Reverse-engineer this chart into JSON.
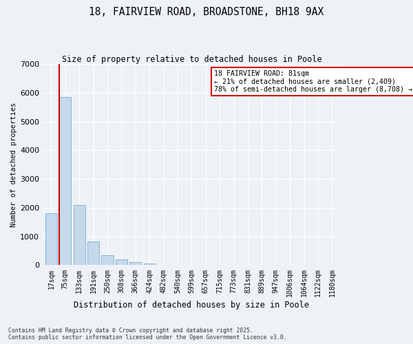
{
  "title_line1": "18, FAIRVIEW ROAD, BROADSTONE, BH18 9AX",
  "title_line2": "Size of property relative to detached houses in Poole",
  "xlabel": "Distribution of detached houses by size in Poole",
  "ylabel": "Number of detached properties",
  "categories": [
    "17sqm",
    "75sqm",
    "133sqm",
    "191sqm",
    "250sqm",
    "308sqm",
    "366sqm",
    "424sqm",
    "482sqm",
    "540sqm",
    "599sqm",
    "657sqm",
    "715sqm",
    "773sqm",
    "831sqm",
    "889sqm",
    "947sqm",
    "1006sqm",
    "1064sqm",
    "1122sqm",
    "1180sqm"
  ],
  "values": [
    1800,
    5850,
    2100,
    830,
    350,
    200,
    100,
    70,
    10,
    0,
    0,
    0,
    0,
    0,
    0,
    0,
    0,
    0,
    0,
    0,
    0
  ],
  "bar_color": "#c5d9eb",
  "bar_edge_color": "#7aafc8",
  "vline_color": "#cc0000",
  "annotation_text": "18 FAIRVIEW ROAD: 81sqm\n← 21% of detached houses are smaller (2,409)\n78% of semi-detached houses are larger (8,708) →",
  "annotation_box_color": "#ffffff",
  "annotation_box_edge_color": "#cc0000",
  "ylim": [
    0,
    7000
  ],
  "yticks": [
    0,
    1000,
    2000,
    3000,
    4000,
    5000,
    6000,
    7000
  ],
  "footer_line1": "Contains HM Land Registry data © Crown copyright and database right 2025.",
  "footer_line2": "Contains public sector information licensed under the Open Government Licence v3.0.",
  "background_color": "#eef2f7",
  "plot_background": "#eef2f7",
  "grid_color": "#ffffff"
}
